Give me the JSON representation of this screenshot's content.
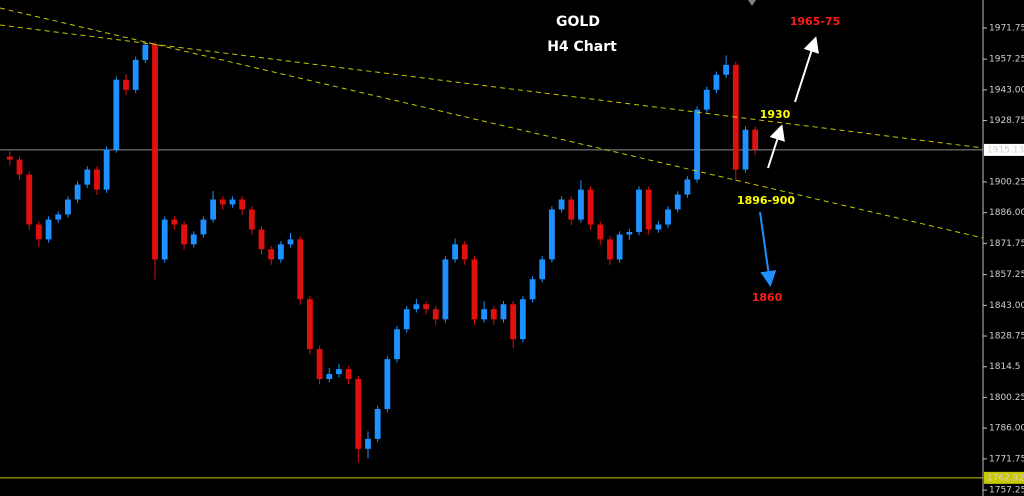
{
  "chart_data": {
    "type": "candlestick",
    "title": "GOLD",
    "subtitle": "H4 Chart",
    "ylim": [
      1754.5,
      1984.7
    ],
    "yticks": [
      1971.75,
      1957.25,
      {
        "value": 1943,
        "label": "1943.00"
      },
      1928.75,
      1900.25,
      {
        "value": 1886,
        "label": "1886.00"
      },
      1871.75,
      1857.25,
      {
        "value": 1843,
        "label": "1843.00"
      },
      1828.75,
      1814.5,
      1800.25,
      {
        "value": 1786,
        "label": "1786.00"
      },
      1771.75,
      1757.25
    ],
    "up_color": "#1e90ff",
    "down_color": "#e01010",
    "open": [
      1912.0,
      1910.6,
      1903.7,
      1880.5,
      1873.6,
      1882.8,
      1885.2,
      1892.1,
      1899.0,
      1906.0,
      1896.7,
      1915.3,
      1947.7,
      1943.0,
      1956.9,
      1963.9,
      1864.3,
      1882.8,
      1880.5,
      1871.3,
      1875.9,
      1882.8,
      1892.1,
      1889.8,
      1892.1,
      1887.5,
      1878.2,
      1869.0,
      1864.3,
      1871.3,
      1873.6,
      1845.8,
      1822.7,
      1808.8,
      1811.1,
      1813.4,
      1808.8,
      1776.4,
      1781.0,
      1794.9,
      1818.0,
      1831.9,
      1841.2,
      1843.5,
      1841.2,
      1836.5,
      1864.3,
      1871.3,
      1864.3,
      1836.5,
      1841.2,
      1836.5,
      1843.5,
      1827.3,
      1845.8,
      1855.1,
      1864.3,
      1887.5,
      1892.1,
      1882.8,
      1896.7,
      1880.5,
      1873.6,
      1864.3,
      1875.9,
      1877.0,
      1896.7,
      1878.2,
      1880.5,
      1887.5,
      1894.4,
      1901.4,
      1933.8,
      1943.0,
      1950.0,
      1954.6,
      1906.0,
      1924.5
    ],
    "high": [
      1914.5,
      1912.1,
      1905.2,
      1882.0,
      1884.3,
      1886.7,
      1893.6,
      1900.5,
      1907.5,
      1907.5,
      1916.8,
      1949.2,
      1950.2,
      1958.4,
      1965.4,
      1965.4,
      1884.3,
      1884.3,
      1882.0,
      1877.4,
      1884.3,
      1896.0,
      1893.6,
      1893.6,
      1893.6,
      1889.0,
      1879.7,
      1870.5,
      1872.8,
      1876.5,
      1875.1,
      1847.3,
      1824.2,
      1814.0,
      1815.9,
      1814.9,
      1810.3,
      1784.5,
      1796.4,
      1819.5,
      1833.4,
      1842.7,
      1846.0,
      1845.0,
      1842.7,
      1865.8,
      1874.0,
      1872.8,
      1865.8,
      1845.0,
      1842.7,
      1845.0,
      1845.0,
      1847.3,
      1856.6,
      1865.8,
      1889.0,
      1893.6,
      1893.6,
      1901.0,
      1898.2,
      1882.0,
      1875.1,
      1877.4,
      1878.5,
      1898.2,
      1898.2,
      1882.0,
      1889.0,
      1895.9,
      1902.9,
      1935.3,
      1944.5,
      1951.5,
      1959.0,
      1956.1,
      1926.0,
      1926.0
    ],
    "low": [
      1908.0,
      1901.2,
      1878.0,
      1870.1,
      1872.1,
      1881.3,
      1883.7,
      1890.6,
      1897.5,
      1894.2,
      1895.2,
      1913.8,
      1940.5,
      1941.5,
      1955.4,
      1855.0,
      1862.8,
      1878.0,
      1868.8,
      1869.8,
      1874.4,
      1881.3,
      1887.3,
      1888.3,
      1885.0,
      1875.7,
      1866.5,
      1861.8,
      1862.8,
      1869.8,
      1843.3,
      1820.2,
      1806.3,
      1807.3,
      1809.6,
      1806.3,
      1770.0,
      1772.0,
      1779.5,
      1793.4,
      1816.5,
      1830.4,
      1839.7,
      1838.7,
      1834.0,
      1835.0,
      1862.8,
      1861.8,
      1834.0,
      1835.0,
      1834.0,
      1835.0,
      1823.0,
      1825.8,
      1844.3,
      1853.6,
      1862.8,
      1886.0,
      1880.3,
      1881.3,
      1878.0,
      1871.1,
      1861.8,
      1862.8,
      1873.4,
      1875.5,
      1875.7,
      1876.7,
      1879.0,
      1886.0,
      1892.9,
      1899.9,
      1932.3,
      1941.5,
      1948.5,
      1900.5,
      1904.5,
      1912.8
    ],
    "close": [
      1910.6,
      1903.7,
      1880.5,
      1873.6,
      1882.8,
      1885.2,
      1892.1,
      1899.0,
      1906.0,
      1896.7,
      1915.3,
      1947.7,
      1943.0,
      1956.9,
      1963.9,
      1864.3,
      1882.8,
      1880.5,
      1871.3,
      1875.9,
      1882.8,
      1892.1,
      1889.8,
      1892.1,
      1887.5,
      1878.2,
      1869.0,
      1864.3,
      1871.3,
      1873.6,
      1845.8,
      1822.7,
      1808.8,
      1811.1,
      1813.4,
      1808.8,
      1776.4,
      1781.0,
      1794.9,
      1818.0,
      1831.9,
      1841.2,
      1843.5,
      1841.2,
      1836.5,
      1864.3,
      1871.3,
      1864.3,
      1836.5,
      1841.2,
      1836.5,
      1843.5,
      1827.3,
      1845.8,
      1855.1,
      1864.3,
      1887.5,
      1892.1,
      1882.8,
      1896.7,
      1880.5,
      1873.6,
      1864.3,
      1875.9,
      1877.0,
      1896.7,
      1878.2,
      1880.5,
      1887.5,
      1894.4,
      1901.4,
      1933.8,
      1943.0,
      1950.0,
      1954.6,
      1906.0,
      1924.5,
      1915.3
    ],
    "hlines": [
      {
        "value": 1915.13,
        "color": "#8c8c8c"
      },
      {
        "value": 1762.92,
        "color": "#c8c800"
      }
    ],
    "annotations": [
      {
        "text": "1965-75",
        "color": "#ff1a1a"
      },
      {
        "text": "1930",
        "color": "#ffff00"
      },
      {
        "text": "1896-900",
        "color": "#ffff00"
      },
      {
        "text": "1860",
        "color": "#ff1a1a"
      }
    ]
  }
}
